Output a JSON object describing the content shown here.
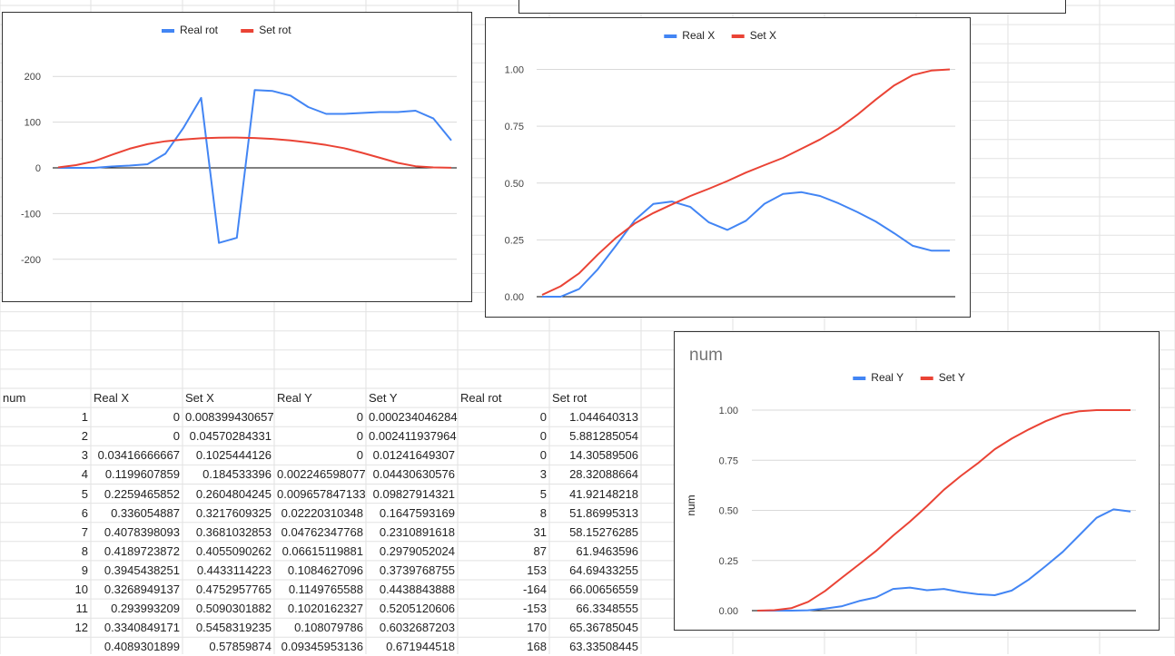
{
  "sheet": {
    "headers": [
      "num",
      "Real X",
      "Set X",
      "Real Y",
      "Set Y",
      "Real rot",
      "Set rot"
    ],
    "rows": [
      [
        "1",
        "0",
        "0.008399430657",
        "0",
        "0.0002340462841",
        "0",
        "1.044640313"
      ],
      [
        "2",
        "0",
        "0.04570284331",
        "0",
        "0.002411937964",
        "0",
        "5.881285054"
      ],
      [
        "3",
        "0.03416666667",
        "0.1025444126",
        "0",
        "0.01241649307",
        "0",
        "14.30589506"
      ],
      [
        "4",
        "0.1199607859",
        "0.184533396",
        "0.002246598077",
        "0.04430630576",
        "3",
        "28.32088664"
      ],
      [
        "5",
        "0.2259465852",
        "0.2604804245",
        "0.009657847133",
        "0.09827914321",
        "5",
        "41.92148218"
      ],
      [
        "6",
        "0.336054887",
        "0.3217609325",
        "0.02220310348",
        "0.1647593169",
        "8",
        "51.86995313"
      ],
      [
        "7",
        "0.4078398093",
        "0.3681032853",
        "0.04762347768",
        "0.2310891618",
        "31",
        "58.15276285"
      ],
      [
        "8",
        "0.4189723872",
        "0.4055090262",
        "0.06615119881",
        "0.2979052024",
        "87",
        "61.9463596"
      ],
      [
        "9",
        "0.3945438251",
        "0.4433114223",
        "0.1084627096",
        "0.3739768755",
        "153",
        "64.69433255"
      ],
      [
        "10",
        "0.3268949137",
        "0.4752957765",
        "0.1149765588",
        "0.4438843888",
        "-164",
        "66.00656559"
      ],
      [
        "11",
        "0.293993209",
        "0.5090301882",
        "0.1020162327",
        "0.5205120606",
        "-153",
        "66.3348555"
      ],
      [
        "12",
        "0.3340849171",
        "0.5458319235",
        "0.108079786",
        "0.6032687203",
        "170",
        "65.36785045"
      ],
      [
        "",
        "0.4089301899",
        "0.57859874",
        "0.09345953136",
        "0.671944518",
        "168",
        "63.33508445"
      ]
    ]
  },
  "colors": {
    "real": "#4285f4",
    "set": "#ea4335",
    "grid": "#d9d9d9",
    "zero": "#000000",
    "tick": "#444444"
  },
  "chart_data": [
    {
      "type": "line",
      "title": "",
      "ylim": [
        -250,
        250
      ],
      "yticks": [
        "200",
        "100",
        "0",
        "-100",
        "-200"
      ],
      "legend_position": "top",
      "series": [
        {
          "name": "Real rot",
          "values": [
            0,
            0,
            0,
            3,
            5,
            8,
            31,
            87,
            153,
            -164,
            -153,
            170,
            168,
            158,
            133,
            118,
            118,
            120,
            122,
            122,
            125,
            108,
            60
          ]
        },
        {
          "name": "Set rot",
          "values": [
            1.04,
            5.88,
            14.31,
            28.32,
            41.92,
            51.87,
            58.15,
            61.95,
            64.69,
            66.01,
            66.33,
            65.37,
            63.34,
            60.0,
            55.5,
            50.0,
            43.0,
            33.0,
            22.0,
            11.0,
            3.5,
            1.0,
            0.2
          ]
        }
      ]
    },
    {
      "type": "line",
      "title": "",
      "ylim": [
        0,
        1.05
      ],
      "yticks": [
        "1.00",
        "0.75",
        "0.50",
        "0.25",
        "0.00"
      ],
      "legend_position": "top",
      "series": [
        {
          "name": "Real X",
          "values": [
            0,
            0,
            0.034,
            0.12,
            0.226,
            0.336,
            0.408,
            0.419,
            0.395,
            0.327,
            0.294,
            0.334,
            0.409,
            0.452,
            0.46,
            0.443,
            0.411,
            0.373,
            0.331,
            0.279,
            0.224,
            0.203,
            0.203
          ]
        },
        {
          "name": "Set X",
          "values": [
            0.008,
            0.046,
            0.103,
            0.185,
            0.26,
            0.322,
            0.368,
            0.406,
            0.443,
            0.475,
            0.509,
            0.546,
            0.579,
            0.611,
            0.651,
            0.692,
            0.74,
            0.8,
            0.867,
            0.93,
            0.975,
            0.995,
            1.0
          ]
        }
      ]
    },
    {
      "type": "line",
      "title": "num",
      "ylabel": "num",
      "ylim": [
        0,
        1.05
      ],
      "yticks": [
        "1.00",
        "0.75",
        "0.50",
        "0.25",
        "0.00"
      ],
      "legend_position": "top",
      "series": [
        {
          "name": "Real Y",
          "values": [
            0,
            0,
            0,
            0.002,
            0.01,
            0.022,
            0.048,
            0.066,
            0.108,
            0.115,
            0.102,
            0.108,
            0.093,
            0.082,
            0.077,
            0.1,
            0.155,
            0.222,
            0.293,
            0.378,
            0.463,
            0.505,
            0.494
          ]
        },
        {
          "name": "Set Y",
          "values": [
            0.0002,
            0.0024,
            0.012,
            0.044,
            0.098,
            0.165,
            0.231,
            0.298,
            0.374,
            0.444,
            0.521,
            0.603,
            0.672,
            0.735,
            0.805,
            0.858,
            0.904,
            0.945,
            0.978,
            0.995,
            1.0,
            1.0,
            1.0
          ]
        }
      ]
    }
  ]
}
